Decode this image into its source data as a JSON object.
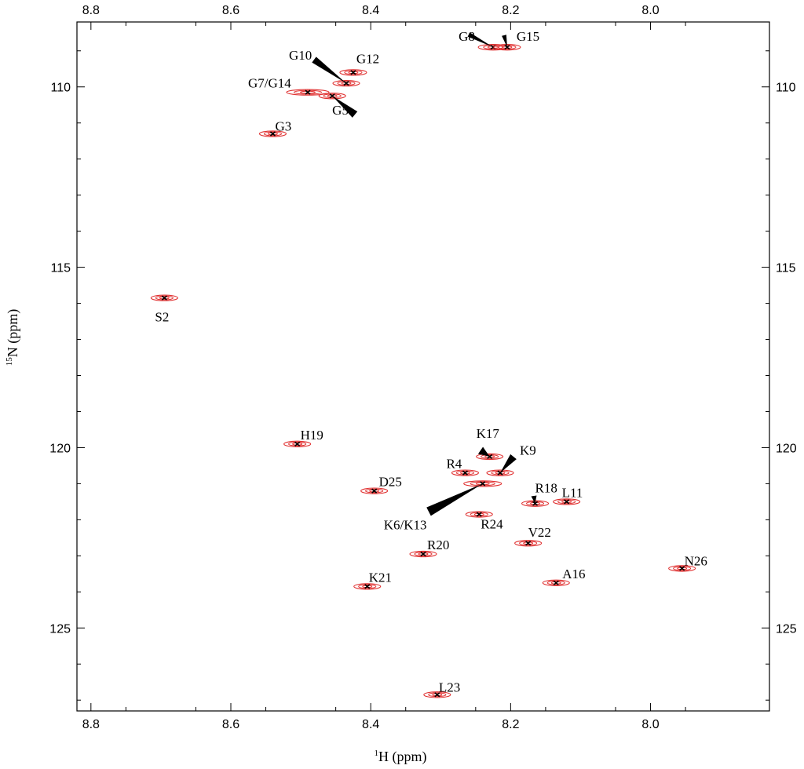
{
  "chart_data": {
    "type": "scatter",
    "title": "",
    "xlabel_sup": "1",
    "xlabel": "H  (ppm)",
    "ylabel_sup": "15",
    "ylabel": "N  (ppm)",
    "xlim": [
      8.82,
      7.83
    ],
    "ylim": [
      108.2,
      127.3
    ],
    "x_ticks": [
      8.8,
      8.6,
      8.4,
      8.2,
      8.0
    ],
    "y_ticks": [
      110,
      115,
      120,
      125
    ],
    "x_tick_labels": [
      "8.8",
      "8.6",
      "8.4",
      "8.2",
      "8.0"
    ],
    "y_tick_labels": [
      "110",
      "115",
      "120",
      "125"
    ],
    "grid": false,
    "peak_color": "#e03030",
    "peaks": [
      {
        "label": "G8",
        "x": 8.225,
        "y": 108.9
      },
      {
        "label": "G15",
        "x": 8.205,
        "y": 108.9
      },
      {
        "label": "G12",
        "x": 8.425,
        "y": 109.6
      },
      {
        "label": "G10",
        "x": 8.435,
        "y": 109.9
      },
      {
        "label": "G7/G14",
        "x": 8.49,
        "y": 110.15
      },
      {
        "label": "G5",
        "x": 8.455,
        "y": 110.25
      },
      {
        "label": "G3",
        "x": 8.54,
        "y": 111.3
      },
      {
        "label": "S2",
        "x": 8.695,
        "y": 115.85
      },
      {
        "label": "H19",
        "x": 8.505,
        "y": 119.9
      },
      {
        "label": "K17",
        "x": 8.23,
        "y": 120.25
      },
      {
        "label": "R4",
        "x": 8.265,
        "y": 120.7
      },
      {
        "label": "K9",
        "x": 8.215,
        "y": 120.7
      },
      {
        "label": "K6/K13",
        "x": 8.24,
        "y": 121.0
      },
      {
        "label": "D25",
        "x": 8.395,
        "y": 121.2
      },
      {
        "label": "R18",
        "x": 8.165,
        "y": 121.55
      },
      {
        "label": "L11",
        "x": 8.12,
        "y": 121.5
      },
      {
        "label": "R24",
        "x": 8.245,
        "y": 121.85
      },
      {
        "label": "V22",
        "x": 8.175,
        "y": 122.65
      },
      {
        "label": "R20",
        "x": 8.325,
        "y": 122.95
      },
      {
        "label": "N26",
        "x": 7.955,
        "y": 123.35
      },
      {
        "label": "A16",
        "x": 8.135,
        "y": 123.75
      },
      {
        "label": "K21",
        "x": 8.405,
        "y": 123.85
      },
      {
        "label": "L23",
        "x": 8.305,
        "y": 126.85
      }
    ]
  }
}
